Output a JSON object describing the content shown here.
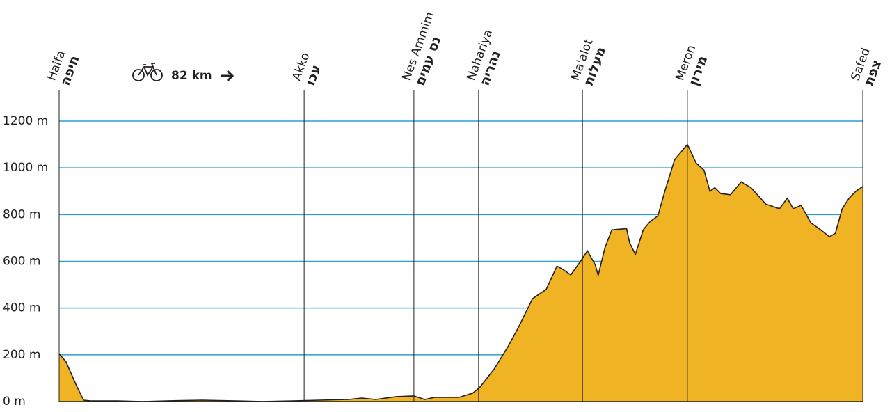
{
  "chart_data": {
    "type": "area",
    "distance_label": "82 km",
    "color": "#f0b323",
    "grid_color": "#2aa0d0",
    "xlim": [
      0,
      82
    ],
    "ylim": [
      0,
      1200
    ],
    "yticks": [
      {
        "value": 0,
        "label": "0 m"
      },
      {
        "value": 200,
        "label": "200 m"
      },
      {
        "value": 400,
        "label": "400 m"
      },
      {
        "value": 600,
        "label": "600 m"
      },
      {
        "value": 800,
        "label": "800 m"
      },
      {
        "value": 1000,
        "label": "1000 m"
      },
      {
        "value": 1200,
        "label": "1200 m"
      }
    ],
    "grid": true,
    "markers": [
      {
        "name": "Haifa",
        "name_he": "חיפה",
        "x": 0
      },
      {
        "name": "Akko",
        "name_he": "עכו",
        "x": 25
      },
      {
        "name": "Nes Ammim",
        "name_he": "נס עמים",
        "x": 36.2
      },
      {
        "name": "Nahariya",
        "name_he": "נהריה",
        "x": 42.8
      },
      {
        "name": "Ma'alot",
        "name_he": "מעלות",
        "x": 53.4
      },
      {
        "name": "Meron",
        "name_he": "מירון",
        "x": 64.1
      },
      {
        "name": "Safed",
        "name_he": "צפת",
        "x": 82
      }
    ],
    "x": [
      0,
      0.7,
      1.8,
      2.5,
      3.2,
      4.3,
      6.0,
      8.5,
      11.0,
      14.6,
      18.1,
      20.9,
      23.8,
      26.6,
      29.5,
      30.9,
      32.3,
      34.4,
      36.2,
      37.3,
      38.3,
      40.8,
      42.2,
      42.9,
      44.4,
      45.8,
      46.9,
      48.3,
      49.7,
      50.8,
      51.5,
      52.2,
      53.2,
      53.9,
      54.7,
      55.0,
      55.7,
      56.4,
      57.9,
      58.2,
      58.8,
      59.6,
      60.3,
      61.1,
      61.8,
      62.8,
      64.1,
      65.0,
      65.8,
      66.4,
      66.9,
      67.5,
      68.5,
      69.6,
      70.6,
      72.1,
      73.5,
      74.3,
      74.9,
      75.7,
      76.7,
      77.7,
      78.6,
      79.2,
      79.9,
      80.6,
      81.3,
      82
    ],
    "y": [
      205,
      170,
      65,
      6,
      3,
      3,
      3,
      0,
      3,
      6,
      3,
      0,
      3,
      6,
      9,
      15,
      9,
      21,
      24,
      9,
      18,
      18,
      36,
      60,
      140,
      235,
      320,
      440,
      480,
      580,
      563,
      542,
      600,
      645,
      585,
      540,
      660,
      735,
      740,
      680,
      630,
      735,
      770,
      795,
      900,
      1035,
      1100,
      1020,
      990,
      900,
      915,
      890,
      885,
      940,
      915,
      845,
      825,
      870,
      825,
      840,
      765,
      735,
      705,
      720,
      825,
      870,
      900,
      920
    ]
  }
}
